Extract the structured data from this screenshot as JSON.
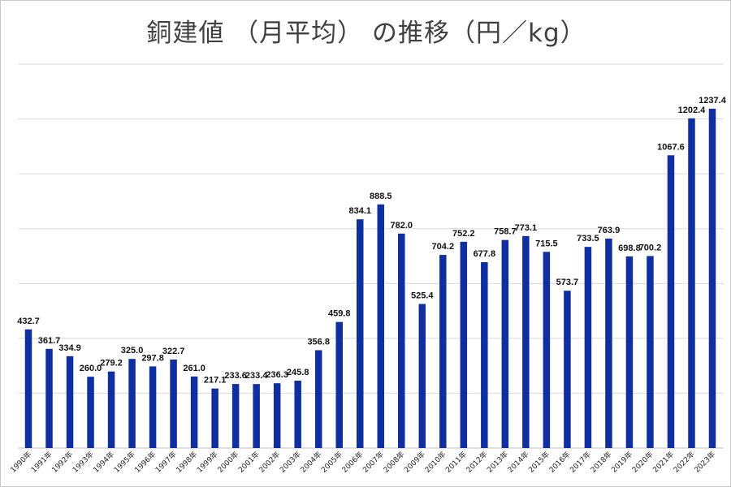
{
  "chart_data": {
    "type": "bar",
    "title": "銅建値 （月平均） の推移（円／kg）",
    "xlabel": "",
    "ylabel": "",
    "ylim": [
      0,
      1400
    ],
    "grid": true,
    "y_tick_step": 200,
    "y_tick_labels_shown": false,
    "bar_color": "#0f2fa0",
    "categories": [
      "1990年",
      "1991年",
      "1992年",
      "1993年",
      "1994年",
      "1995年",
      "1996年",
      "1997年",
      "1998年",
      "1999年",
      "2000年",
      "2001年",
      "2002年",
      "2003年",
      "2004年",
      "2005年",
      "2006年",
      "2007年",
      "2008年",
      "2009年",
      "2010年",
      "2011年",
      "2012年",
      "2013年",
      "2014年",
      "2015年",
      "2016年",
      "2017年",
      "2018年",
      "2019年",
      "2020年",
      "2021年",
      "2022年",
      "2023年"
    ],
    "values": [
      432.7,
      361.7,
      334.9,
      260.0,
      279.2,
      325.0,
      297.8,
      322.7,
      261.0,
      217.1,
      233.6,
      233.4,
      236.3,
      245.8,
      356.8,
      459.8,
      834.1,
      888.5,
      782.0,
      525.4,
      704.2,
      752.2,
      677.8,
      758.7,
      773.1,
      715.5,
      573.7,
      733.5,
      763.9,
      698.8,
      700.2,
      1067.6,
      1202.4,
      1237.4
    ],
    "labels": [
      "432.7",
      "361.7",
      "334.9",
      "260.0",
      "279.2",
      "325.0",
      "297.8",
      "322.7",
      "261.0",
      "217.1",
      "233.6",
      "233.4",
      "236.3",
      "245.8",
      "356.8",
      "459.8",
      "834.1",
      "888.5",
      "782.0",
      "525.4",
      "704.2",
      "752.2",
      "677.8",
      "758.7",
      "773.1",
      "715.5",
      "573.7",
      "733.5",
      "763.9",
      "698.8",
      "700.2",
      "1067.6",
      "1202.4",
      "1237.4"
    ]
  }
}
